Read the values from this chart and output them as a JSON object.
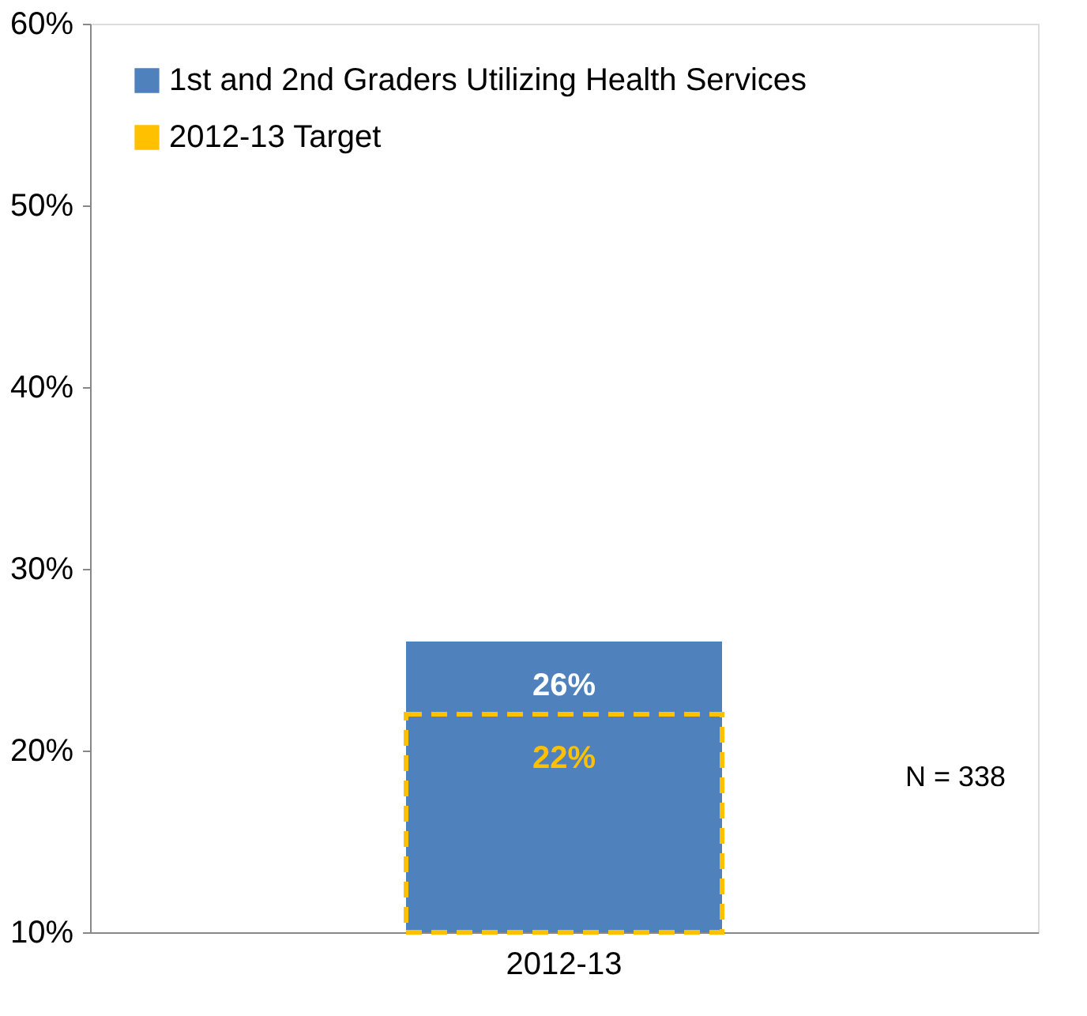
{
  "chart_data": {
    "type": "bar",
    "categories": [
      "2012-13"
    ],
    "series": [
      {
        "name": "1st and 2nd Graders Utilizing Health Services",
        "color": "#4f81bd",
        "values": [
          26
        ],
        "value_labels": [
          "26%"
        ]
      },
      {
        "name": "2012-13 Target",
        "color": "#ffc000",
        "values": [
          22
        ],
        "line_style": "dashed",
        "value_labels": [
          "22%"
        ]
      }
    ],
    "ylim": [
      10,
      60
    ],
    "yticks": [
      {
        "value": 10,
        "label": "10%"
      },
      {
        "value": 20,
        "label": "20%"
      },
      {
        "value": 30,
        "label": "30%"
      },
      {
        "value": 40,
        "label": "40%"
      },
      {
        "value": 50,
        "label": "50%"
      },
      {
        "value": 60,
        "label": "60%"
      }
    ],
    "grid": false,
    "legend": "top left",
    "annotations": [
      "N = 338"
    ]
  }
}
